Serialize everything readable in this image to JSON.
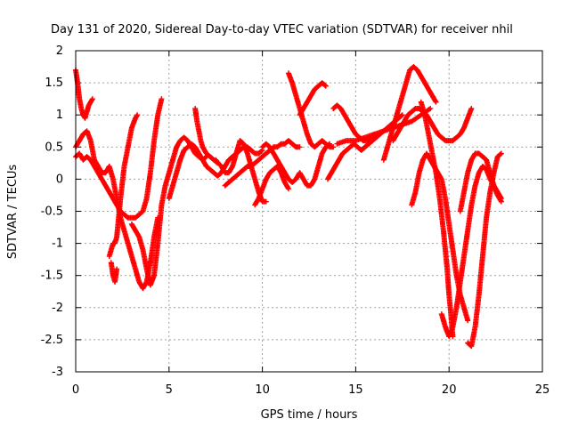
{
  "chart_data": {
    "type": "scatter",
    "title": "Day 131 of 2020, Sidereal Day-to-day VTEC variation (SDTVAR) for receiver nhil",
    "xlabel": "GPS time / hours",
    "ylabel": "SDTVAR / TECUs",
    "xlim": [
      0,
      25
    ],
    "ylim": [
      -3,
      2
    ],
    "xticks": [
      0,
      5,
      10,
      15,
      20,
      25
    ],
    "yticks": [
      -3,
      -2.5,
      -2,
      -1.5,
      -1,
      -0.5,
      0,
      0.5,
      1,
      1.5,
      2
    ],
    "grid": true,
    "marker": "plus",
    "color": "#ff0000",
    "series": [
      {
        "x": [
          0,
          0.1,
          0.2,
          0.3,
          0.4,
          0.5,
          0.6,
          0.7,
          0.8,
          0.9
        ],
        "y": [
          1.7,
          1.5,
          1.25,
          1.1,
          1.0,
          0.95,
          1.05,
          1.15,
          1.2,
          1.25
        ]
      },
      {
        "x": [
          0,
          0.2,
          0.4,
          0.6,
          0.8,
          1.0,
          1.2,
          1.4,
          1.6,
          1.8,
          2.0,
          2.2,
          2.4,
          2.6,
          2.8,
          3.0,
          3.2,
          3.4,
          3.6,
          3.8,
          4.0,
          4.2,
          4.4
        ],
        "y": [
          0.5,
          0.6,
          0.7,
          0.75,
          0.6,
          0.3,
          0.2,
          0.1,
          0.1,
          0.2,
          0.0,
          -0.3,
          -0.6,
          -0.8,
          -1.0,
          -1.2,
          -1.4,
          -1.6,
          -1.7,
          -1.6,
          -1.3,
          -0.9,
          -0.6
        ]
      },
      {
        "x": [
          0,
          0.2,
          0.4,
          0.6,
          0.8,
          1.0,
          1.2,
          1.4,
          1.6,
          1.8,
          2.0,
          2.2,
          2.4,
          2.6,
          2.8,
          3.0,
          3.2,
          3.4,
          3.6,
          3.8,
          4.0,
          4.2,
          4.4,
          4.6
        ],
        "y": [
          0.35,
          0.4,
          0.3,
          0.35,
          0.3,
          0.2,
          0.1,
          0.0,
          -0.1,
          -0.2,
          -0.3,
          -0.4,
          -0.5,
          -0.55,
          -0.6,
          -0.6,
          -0.6,
          -0.55,
          -0.5,
          -0.3,
          0.1,
          0.6,
          1.0,
          1.25
        ]
      },
      {
        "x": [
          1.8,
          1.9,
          2.0,
          2.1,
          2.2,
          2.3,
          2.4,
          2.6,
          2.8,
          3.0,
          3.2,
          3.3
        ],
        "y": [
          -1.2,
          -1.1,
          -1.0,
          -1.0,
          -0.9,
          -0.6,
          -0.3,
          0.2,
          0.5,
          0.8,
          0.95,
          1.0
        ]
      },
      {
        "x": [
          1.9,
          2.0,
          2.1,
          2.2
        ],
        "y": [
          -1.3,
          -1.5,
          -1.6,
          -1.4
        ]
      },
      {
        "x": [
          3.0,
          3.2,
          3.4,
          3.6,
          3.8,
          4.0,
          4.2,
          4.4,
          4.6,
          4.8,
          5.0,
          5.2,
          5.4,
          5.6,
          5.8,
          6.0,
          6.2,
          6.4,
          6.6,
          6.8,
          7.0
        ],
        "y": [
          -0.7,
          -0.8,
          -0.9,
          -1.1,
          -1.4,
          -1.65,
          -1.5,
          -1.0,
          -0.4,
          -0.1,
          0.1,
          0.3,
          0.5,
          0.6,
          0.65,
          0.6,
          0.5,
          0.4,
          0.35,
          0.3,
          0.35
        ]
      },
      {
        "x": [
          5.0,
          5.2,
          5.4,
          5.6,
          5.8,
          6.0,
          6.2,
          6.4,
          6.6,
          6.8,
          7.0,
          7.2,
          7.4,
          7.6,
          7.8,
          8.0,
          8.2,
          8.4,
          8.6,
          8.8,
          9.0,
          9.2,
          9.4,
          9.6,
          9.8,
          10.0
        ],
        "y": [
          -0.3,
          -0.1,
          0.1,
          0.3,
          0.45,
          0.5,
          0.55,
          0.5,
          0.4,
          0.3,
          0.2,
          0.15,
          0.1,
          0.05,
          0.1,
          0.2,
          0.3,
          0.35,
          0.4,
          0.45,
          0.5,
          0.5,
          0.45,
          0.4,
          0.4,
          0.45
        ]
      },
      {
        "x": [
          6.4,
          6.5,
          6.6,
          6.7,
          6.8,
          6.9,
          7.0,
          7.2,
          7.4,
          7.6
        ],
        "y": [
          1.1,
          0.9,
          0.75,
          0.6,
          0.5,
          0.45,
          0.4,
          0.35,
          0.3,
          0.25
        ]
      },
      {
        "x": [
          7.5,
          7.8,
          8.0,
          8.2,
          8.4,
          8.6,
          8.8,
          9.0,
          9.2,
          9.4,
          9.6,
          9.8,
          10.0,
          10.2
        ],
        "y": [
          0.3,
          0.2,
          0.1,
          0.1,
          0.2,
          0.4,
          0.6,
          0.55,
          0.4,
          0.2,
          0.0,
          -0.2,
          -0.35,
          -0.35
        ]
      },
      {
        "x": [
          8.0,
          8.2,
          8.4,
          8.6,
          8.8,
          9.0,
          9.2,
          9.4,
          9.6,
          9.8,
          10.0,
          10.2,
          10.4,
          10.6,
          10.8,
          11.0,
          11.2,
          11.4,
          11.6,
          11.8,
          12.0
        ],
        "y": [
          -0.1,
          -0.05,
          0.0,
          0.05,
          0.1,
          0.15,
          0.2,
          0.2,
          0.25,
          0.3,
          0.35,
          0.4,
          0.45,
          0.5,
          0.5,
          0.55,
          0.55,
          0.6,
          0.55,
          0.5,
          0.5
        ]
      },
      {
        "x": [
          10.0,
          10.2,
          10.4,
          10.6,
          10.8,
          11.0,
          11.2,
          11.4,
          11.6,
          11.8,
          12.0,
          12.2,
          12.4,
          12.6,
          12.8,
          13.0,
          13.2,
          13.4,
          13.6
        ],
        "y": [
          0.5,
          0.55,
          0.5,
          0.4,
          0.3,
          0.2,
          0.1,
          0.0,
          -0.05,
          0.0,
          0.1,
          0.0,
          -0.1,
          -0.1,
          0.0,
          0.2,
          0.4,
          0.5,
          0.55
        ]
      },
      {
        "x": [
          9.6,
          9.8,
          10.0,
          10.2,
          10.4,
          10.6,
          10.8,
          11.0,
          11.2,
          11.4
        ],
        "y": [
          -0.4,
          -0.3,
          -0.15,
          0.0,
          0.1,
          0.15,
          0.2,
          0.1,
          -0.05,
          -0.15
        ]
      },
      {
        "x": [
          11.4,
          11.6,
          11.8,
          12.0,
          12.2,
          12.4,
          12.6,
          12.8,
          13.0,
          13.2,
          13.4,
          13.6,
          13.8
        ],
        "y": [
          1.65,
          1.5,
          1.3,
          1.1,
          0.9,
          0.7,
          0.55,
          0.5,
          0.55,
          0.6,
          0.55,
          0.5,
          0.5
        ]
      },
      {
        "x": [
          12.0,
          12.2,
          12.4,
          12.6,
          12.8,
          13.0,
          13.2,
          13.4
        ],
        "y": [
          1.0,
          1.1,
          1.2,
          1.3,
          1.4,
          1.45,
          1.5,
          1.45
        ]
      },
      {
        "x": [
          13.5,
          13.7,
          13.9,
          14.1,
          14.3,
          14.5,
          14.7,
          14.9,
          15.1,
          15.3,
          15.5,
          15.7,
          15.9,
          16.1,
          16.3,
          16.5,
          16.7,
          16.9,
          17.1,
          17.3,
          17.5
        ],
        "y": [
          0.0,
          0.1,
          0.2,
          0.3,
          0.4,
          0.45,
          0.5,
          0.55,
          0.5,
          0.45,
          0.5,
          0.55,
          0.6,
          0.65,
          0.7,
          0.75,
          0.8,
          0.85,
          0.9,
          0.95,
          1.0
        ]
      },
      {
        "x": [
          13.8,
          14.0,
          14.2,
          14.4,
          14.6,
          14.8,
          15.0,
          15.2,
          15.4,
          15.6,
          15.8,
          16.0
        ],
        "y": [
          1.1,
          1.15,
          1.1,
          1.0,
          0.9,
          0.8,
          0.7,
          0.65,
          0.6,
          0.6,
          0.65,
          0.7
        ]
      },
      {
        "x": [
          14.0,
          14.5,
          15.0,
          15.5,
          16.0,
          16.5,
          17.0,
          17.5,
          18.0,
          18.5,
          19.0
        ],
        "y": [
          0.55,
          0.6,
          0.6,
          0.65,
          0.7,
          0.75,
          0.8,
          0.85,
          0.9,
          1.0,
          1.1
        ]
      },
      {
        "x": [
          16.5,
          16.7,
          16.9,
          17.1,
          17.3,
          17.5,
          17.7,
          17.9,
          18.1,
          18.3,
          18.5,
          18.7,
          18.9,
          19.1,
          19.3
        ],
        "y": [
          0.3,
          0.5,
          0.7,
          0.9,
          1.1,
          1.3,
          1.5,
          1.7,
          1.75,
          1.7,
          1.6,
          1.5,
          1.4,
          1.3,
          1.2
        ]
      },
      {
        "x": [
          17.0,
          17.2,
          17.4,
          17.6,
          17.8,
          18.0,
          18.2,
          18.4,
          18.6,
          18.8,
          19.0,
          19.2,
          19.4,
          19.6,
          19.8,
          20.0,
          20.2,
          20.4,
          20.6,
          20.8,
          21.0,
          21.2
        ],
        "y": [
          0.6,
          0.7,
          0.8,
          0.9,
          1.0,
          1.05,
          1.1,
          1.1,
          1.05,
          1.0,
          0.9,
          0.8,
          0.7,
          0.65,
          0.6,
          0.6,
          0.6,
          0.65,
          0.7,
          0.8,
          0.95,
          1.1
        ]
      },
      {
        "x": [
          18.0,
          18.2,
          18.4,
          18.6,
          18.8,
          19.0,
          19.2,
          19.4,
          19.6,
          19.8,
          20.0,
          20.2,
          20.4,
          20.6,
          20.8,
          21.0
        ],
        "y": [
          -0.4,
          -0.2,
          0.1,
          0.3,
          0.4,
          0.3,
          0.2,
          0.1,
          0.0,
          -0.3,
          -0.7,
          -1.1,
          -1.5,
          -1.8,
          -2.0,
          -2.2
        ]
      },
      {
        "x": [
          18.5,
          18.7,
          18.9,
          19.1,
          19.3,
          19.5,
          19.7,
          19.9,
          20.0,
          20.1,
          20.2
        ],
        "y": [
          1.2,
          1.0,
          0.7,
          0.4,
          0.1,
          -0.3,
          -0.8,
          -1.4,
          -1.8,
          -2.1,
          -2.45
        ]
      },
      {
        "x": [
          19.6,
          19.8,
          20.0,
          20.2,
          20.4,
          20.6,
          20.8,
          21.0,
          21.2,
          21.4,
          21.6,
          21.8,
          22.0,
          22.2,
          22.4,
          22.6,
          22.8
        ],
        "y": [
          -2.1,
          -2.3,
          -2.45,
          -2.3,
          -2.0,
          -1.6,
          -1.2,
          -0.8,
          -0.4,
          -0.1,
          0.1,
          0.2,
          0.15,
          0.0,
          -0.1,
          -0.2,
          -0.3
        ]
      },
      {
        "x": [
          20.6,
          20.8,
          21.0,
          21.2,
          21.4,
          21.6,
          21.8,
          22.0,
          22.2,
          22.4,
          22.6,
          22.8
        ],
        "y": [
          -0.5,
          -0.2,
          0.1,
          0.3,
          0.4,
          0.4,
          0.35,
          0.3,
          0.1,
          -0.1,
          -0.25,
          -0.35
        ]
      },
      {
        "x": [
          21.0,
          21.2,
          21.4,
          21.6,
          21.8,
          22.0,
          22.2,
          22.4,
          22.6,
          22.8
        ],
        "y": [
          -2.55,
          -2.6,
          -2.3,
          -1.8,
          -1.2,
          -0.6,
          -0.2,
          0.1,
          0.35,
          0.4
        ]
      }
    ]
  }
}
